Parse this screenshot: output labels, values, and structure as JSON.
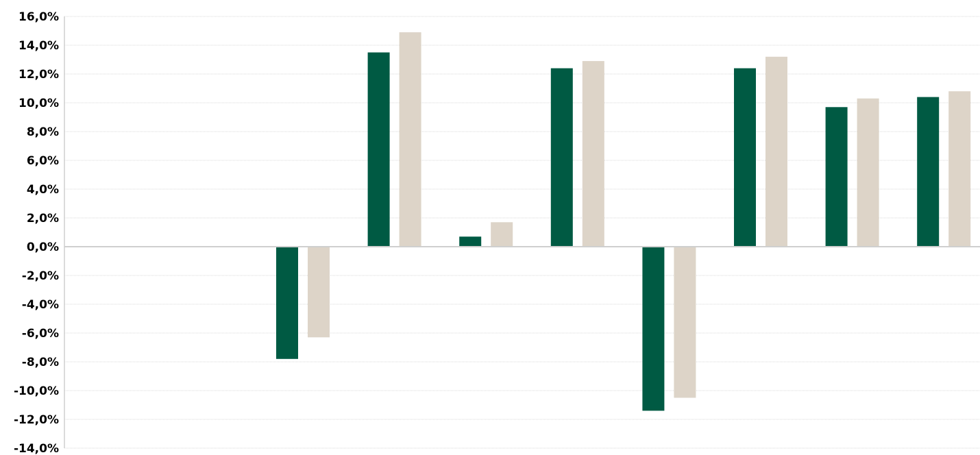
{
  "chart_data": {
    "type": "bar",
    "title": "",
    "xlabel": "",
    "ylabel": "",
    "ylim": [
      -14,
      16
    ],
    "y_tick_step": 2,
    "y_tick_format": "percent-comma-1-decimal",
    "grid": true,
    "legend": "none",
    "categories": [
      "",
      "",
      "",
      "",
      "",
      "",
      "",
      "",
      "",
      ""
    ],
    "series": [
      {
        "color": "#005a43",
        "values": [
          null,
          null,
          -7.8,
          13.5,
          0.7,
          12.4,
          -11.4,
          12.4,
          9.7,
          10.4
        ]
      },
      {
        "color": "#ddd4c8",
        "values": [
          null,
          null,
          -6.3,
          14.9,
          1.7,
          12.9,
          -10.5,
          13.2,
          10.3,
          10.8
        ]
      }
    ],
    "y_tick_labels": [
      "16,0%",
      "14,0%",
      "12,0%",
      "10,0%",
      "8,0%",
      "6,0%",
      "4,0%",
      "2,0%",
      "0,0%",
      "-2,0%",
      "-4,0%",
      "-6,0%",
      "-8,0%",
      "-10,0%",
      "-12,0%",
      "-14,0%"
    ]
  }
}
